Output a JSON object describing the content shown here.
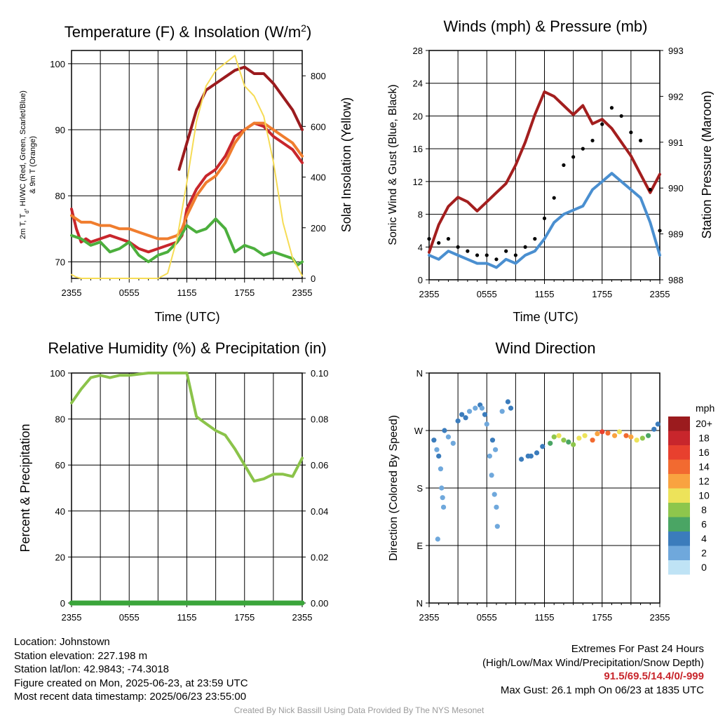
{
  "panels": {
    "temp": {
      "title": "Temperature (F) & Insolation (W/m",
      "title_sup": "2",
      "title_close": ")",
      "ylabel_lines": [
        "2m T, T",
        "d",
        ", HI/WC (Red, Green, Scarlet/Blue)",
        "& 9m T (Orange)"
      ],
      "y2label": "Solar Insolation (Yellow)",
      "xlabel": "Time (UTC)"
    },
    "winds": {
      "title": "Winds (mph) & Pressure (mb)",
      "ylabel": "Sonic Wind & Gust (Blue, Black)",
      "y2label": "Station Pressure (Maroon)",
      "xlabel": "Time (UTC)"
    },
    "rh": {
      "title": "Relative Humidity (%) & Precipitation (in)",
      "ylabel": "Percent & Precipitation"
    },
    "wdir": {
      "title": "Wind Direction",
      "ylabel": "Direction (Colored By Speed)",
      "legend_title": "mph",
      "legend_labels": [
        "20+",
        "18",
        "16",
        "14",
        "12",
        "10",
        "8",
        "6",
        "4",
        "2",
        "0"
      ],
      "legend_colors": [
        "#9b1b1e",
        "#c8262c",
        "#e8402e",
        "#f26a30",
        "#f9a340",
        "#ede35a",
        "#8ec64c",
        "#4aa564",
        "#3b7cbc",
        "#6fa8dc",
        "#bfe3f5"
      ]
    }
  },
  "chart_data": [
    {
      "type": "line",
      "title": "Temperature (F) & Insolation (W/m2)",
      "xlabel": "Time (UTC)",
      "x_ticks": [
        "2355",
        "0555",
        "1155",
        "1755",
        "2355"
      ],
      "xlim": [
        0,
        24
      ],
      "ylim": [
        67.5,
        102
      ],
      "y_ticks": [
        70,
        80,
        90,
        100
      ],
      "y2lim": [
        0,
        900
      ],
      "y2_ticks": [
        0,
        200,
        400,
        600,
        800
      ],
      "series": [
        {
          "name": "2m T",
          "color": "#c8262c",
          "axis": "left",
          "x": [
            0,
            0.5,
            1,
            1.5,
            2,
            3,
            4,
            5,
            6,
            7,
            8,
            9,
            10,
            11,
            11.5,
            12,
            13,
            14,
            15,
            16,
            17,
            18,
            19,
            20,
            21,
            22,
            23,
            24
          ],
          "y": [
            78,
            75,
            73,
            73.5,
            73,
            73.5,
            74,
            73.5,
            73,
            72,
            71.5,
            72,
            72.5,
            73,
            74,
            78,
            81,
            83,
            84,
            86,
            89,
            90,
            91,
            90.5,
            89,
            88,
            87,
            85
          ]
        },
        {
          "name": "Td",
          "color": "#4caf3d",
          "axis": "left",
          "x": [
            0,
            1,
            2,
            3,
            4,
            5,
            6,
            7,
            8,
            9,
            10,
            11,
            12,
            13,
            14,
            15,
            16,
            17,
            18,
            19,
            20,
            21,
            22,
            23,
            23.5,
            24
          ],
          "y": [
            74,
            73.5,
            72.5,
            73,
            71.5,
            72,
            73,
            71,
            70,
            71,
            71.5,
            73,
            75.5,
            74.5,
            75,
            76.5,
            75,
            71.5,
            72.5,
            72,
            71,
            71.5,
            71,
            70.5,
            69.5,
            70
          ]
        },
        {
          "name": "HI/WC",
          "color": "#9b1b1e",
          "axis": "left",
          "x": [
            11.2,
            12,
            13,
            14,
            15,
            16,
            17,
            18,
            19,
            20,
            21,
            22,
            23,
            24
          ],
          "y": [
            84,
            88,
            93,
            96,
            97,
            98,
            99,
            99.5,
            98.5,
            98.5,
            97,
            95,
            93,
            90
          ]
        },
        {
          "name": "9m T",
          "color": "#f07d2e",
          "axis": "left",
          "x": [
            0,
            1,
            2,
            3,
            4,
            5,
            6,
            7,
            8,
            9,
            10,
            11,
            11.5,
            12,
            13,
            14,
            15,
            16,
            17,
            18,
            19,
            20,
            21,
            22,
            23,
            24
          ],
          "y": [
            77,
            76,
            76,
            75.5,
            75.5,
            75,
            75,
            74.5,
            74,
            73.5,
            73.5,
            74,
            75,
            77,
            80,
            82,
            83,
            85,
            88,
            90,
            91,
            91,
            90,
            89,
            88,
            86
          ]
        },
        {
          "name": "Solar Insolation",
          "color": "#f6dc55",
          "axis": "right",
          "x": [
            0,
            0.5,
            1,
            2,
            3,
            4,
            5,
            6,
            7,
            8,
            9,
            10,
            11,
            12,
            13,
            14,
            15,
            16,
            17,
            18,
            19,
            20,
            21,
            22,
            23,
            24
          ],
          "y": [
            15,
            5,
            0,
            0,
            0,
            0,
            0,
            0,
            0,
            0,
            0,
            20,
            160,
            380,
            620,
            760,
            820,
            850,
            880,
            760,
            720,
            640,
            460,
            220,
            80,
            10
          ]
        }
      ]
    },
    {
      "type": "line",
      "title": "Winds (mph) & Pressure (mb)",
      "xlabel": "Time (UTC)",
      "x_ticks": [
        "2355",
        "0555",
        "1155",
        "1755",
        "2355"
      ],
      "xlim": [
        0,
        24
      ],
      "ylim": [
        0,
        28
      ],
      "y_ticks": [
        0,
        4,
        8,
        12,
        16,
        20,
        24,
        28
      ],
      "y2lim": [
        988,
        993
      ],
      "y2_ticks": [
        988,
        989,
        990,
        991,
        992,
        993
      ],
      "series": [
        {
          "name": "Station Pressure",
          "color": "#a31e1e",
          "axis": "right",
          "x": [
            0,
            1,
            2,
            3,
            4,
            5,
            6,
            7,
            8,
            9,
            10,
            11,
            12,
            13,
            14,
            15,
            16,
            17,
            18,
            19,
            20,
            21,
            22,
            23,
            24
          ],
          "y": [
            988.6,
            989.2,
            989.6,
            989.8,
            989.7,
            989.5,
            989.7,
            989.9,
            990.1,
            990.5,
            991.0,
            991.6,
            992.1,
            992.0,
            991.8,
            991.6,
            991.8,
            991.4,
            991.5,
            991.3,
            991.0,
            990.7,
            990.3,
            989.9,
            990.3
          ]
        },
        {
          "name": "Sonic Wind",
          "color": "#4a8fd0",
          "axis": "left",
          "x": [
            0,
            1,
            2,
            3,
            4,
            5,
            6,
            7,
            8,
            9,
            10,
            11,
            12,
            13,
            14,
            15,
            16,
            17,
            18,
            19,
            20,
            21,
            22,
            23,
            24
          ],
          "y": [
            3,
            2.5,
            3.5,
            3,
            2.5,
            2,
            2,
            1.5,
            2.5,
            2,
            3,
            3.5,
            5,
            7,
            8,
            8.5,
            9,
            11,
            12,
            13,
            12,
            11,
            10,
            7,
            3
          ]
        },
        {
          "name": "Gust",
          "color": "#000000",
          "axis": "left",
          "x": [
            0,
            1,
            2,
            3,
            4,
            5,
            6,
            7,
            8,
            9,
            10,
            11,
            12,
            13,
            14,
            15,
            16,
            17,
            18,
            19,
            20,
            21,
            22,
            23,
            24
          ],
          "y": [
            5,
            4.5,
            5,
            4,
            3.5,
            3,
            3,
            2.5,
            3.5,
            3,
            4,
            5,
            7.5,
            10,
            14,
            15,
            16,
            17,
            19,
            21,
            20,
            18,
            17,
            11,
            6
          ]
        }
      ]
    },
    {
      "type": "line",
      "title": "Relative Humidity (%) & Precipitation (in)",
      "x_ticks": [
        "2355",
        "0555",
        "1155",
        "1755",
        "2355"
      ],
      "xlim": [
        0,
        24
      ],
      "ylim": [
        0,
        100
      ],
      "y_ticks": [
        0,
        20,
        40,
        60,
        80,
        100
      ],
      "y2lim": [
        0,
        0.1
      ],
      "y2_ticks": [
        "0.00",
        "0.02",
        "0.04",
        "0.06",
        "0.08",
        "0.10"
      ],
      "series": [
        {
          "name": "Relative Humidity",
          "color": "#8bc34a",
          "axis": "left",
          "x": [
            0,
            1,
            2,
            3,
            4,
            5,
            6,
            7,
            8,
            9,
            10,
            11,
            12,
            13,
            14,
            15,
            16,
            17,
            18,
            19,
            20,
            21,
            22,
            23,
            24
          ],
          "y": [
            87,
            93,
            98,
            99,
            98,
            99,
            99,
            99.5,
            100,
            100,
            100,
            100,
            100,
            81,
            78,
            75,
            73,
            67,
            60,
            53,
            54,
            56,
            56,
            55,
            63
          ]
        },
        {
          "name": "Precipitation",
          "color": "#3aa53a",
          "axis": "right",
          "x": [
            0,
            24
          ],
          "y": [
            0,
            0
          ]
        }
      ]
    },
    {
      "type": "scatter",
      "title": "Wind Direction",
      "xlim": [
        0,
        24
      ],
      "x_ticks": [
        "2355",
        "0555",
        "1155",
        "1755",
        "2355"
      ],
      "ylim": [
        0,
        360
      ],
      "y_ticks": [
        "N",
        "E",
        "S",
        "W",
        "N"
      ],
      "points": [
        [
          0.5,
          255,
          4
        ],
        [
          0.8,
          240,
          2
        ],
        [
          1,
          230,
          4
        ],
        [
          1.2,
          210,
          2
        ],
        [
          1.3,
          180,
          2
        ],
        [
          1.4,
          165,
          2
        ],
        [
          1.5,
          150,
          1
        ],
        [
          0.9,
          100,
          1
        ],
        [
          1.6,
          270,
          4
        ],
        [
          2,
          260,
          2
        ],
        [
          2.5,
          250,
          2
        ],
        [
          3,
          285,
          4
        ],
        [
          3.4,
          295,
          4
        ],
        [
          3.8,
          290,
          4
        ],
        [
          4.2,
          300,
          2
        ],
        [
          4.8,
          305,
          2
        ],
        [
          5.3,
          310,
          4
        ],
        [
          5.8,
          295,
          4
        ],
        [
          5.5,
          305,
          1
        ],
        [
          6,
          280,
          2
        ],
        [
          6.3,
          230,
          2
        ],
        [
          6.6,
          255,
          4
        ],
        [
          6.9,
          240,
          2
        ],
        [
          6.5,
          200,
          1
        ],
        [
          6.8,
          170,
          2
        ],
        [
          7.1,
          120,
          1
        ],
        [
          7,
          150,
          2
        ],
        [
          7.6,
          300,
          2
        ],
        [
          8.2,
          315,
          4
        ],
        [
          8.5,
          305,
          4
        ],
        [
          9.6,
          225,
          4
        ],
        [
          10.3,
          230,
          4
        ],
        [
          10.6,
          230,
          4
        ],
        [
          11.2,
          235,
          4
        ],
        [
          11.8,
          245,
          4
        ],
        [
          12.6,
          250,
          6
        ],
        [
          13,
          260,
          8
        ],
        [
          13.5,
          262,
          10
        ],
        [
          14,
          255,
          8
        ],
        [
          14.5,
          252,
          6
        ],
        [
          15,
          248,
          8
        ],
        [
          15.6,
          258,
          10
        ],
        [
          16.2,
          262,
          10
        ],
        [
          17,
          255,
          14
        ],
        [
          17.5,
          265,
          12
        ],
        [
          18,
          268,
          16
        ],
        [
          18.6,
          266,
          14
        ],
        [
          19.3,
          262,
          12
        ],
        [
          19.8,
          268,
          10
        ],
        [
          20.5,
          262,
          14
        ],
        [
          21,
          260,
          12
        ],
        [
          21.6,
          255,
          10
        ],
        [
          22.2,
          258,
          8
        ],
        [
          22.8,
          262,
          6
        ],
        [
          23.4,
          272,
          4
        ],
        [
          23.8,
          280,
          4
        ]
      ]
    }
  ],
  "info": {
    "location": "Location: Johnstown",
    "elevation": "Station elevation: 227.198 m",
    "latlon": "Station lat/lon: 42.9843; -74.3018",
    "created": "Figure created on Mon, 2025-06-23, at 23:59 UTC",
    "recent": "Most recent data timestamp: 2025/06/23 23:55:00"
  },
  "extremes": {
    "title": "Extremes For Past 24 Hours",
    "subtitle": "(High/Low/Max Wind/Precipitation/Snow Depth)",
    "values": "91.5/69.5/14.4/0/-999",
    "gust": "Max Gust: 26.1 mph On 06/23 at 1835 UTC"
  },
  "credit": "Created By Nick Bassill Using Data Provided By The NYS Mesonet"
}
